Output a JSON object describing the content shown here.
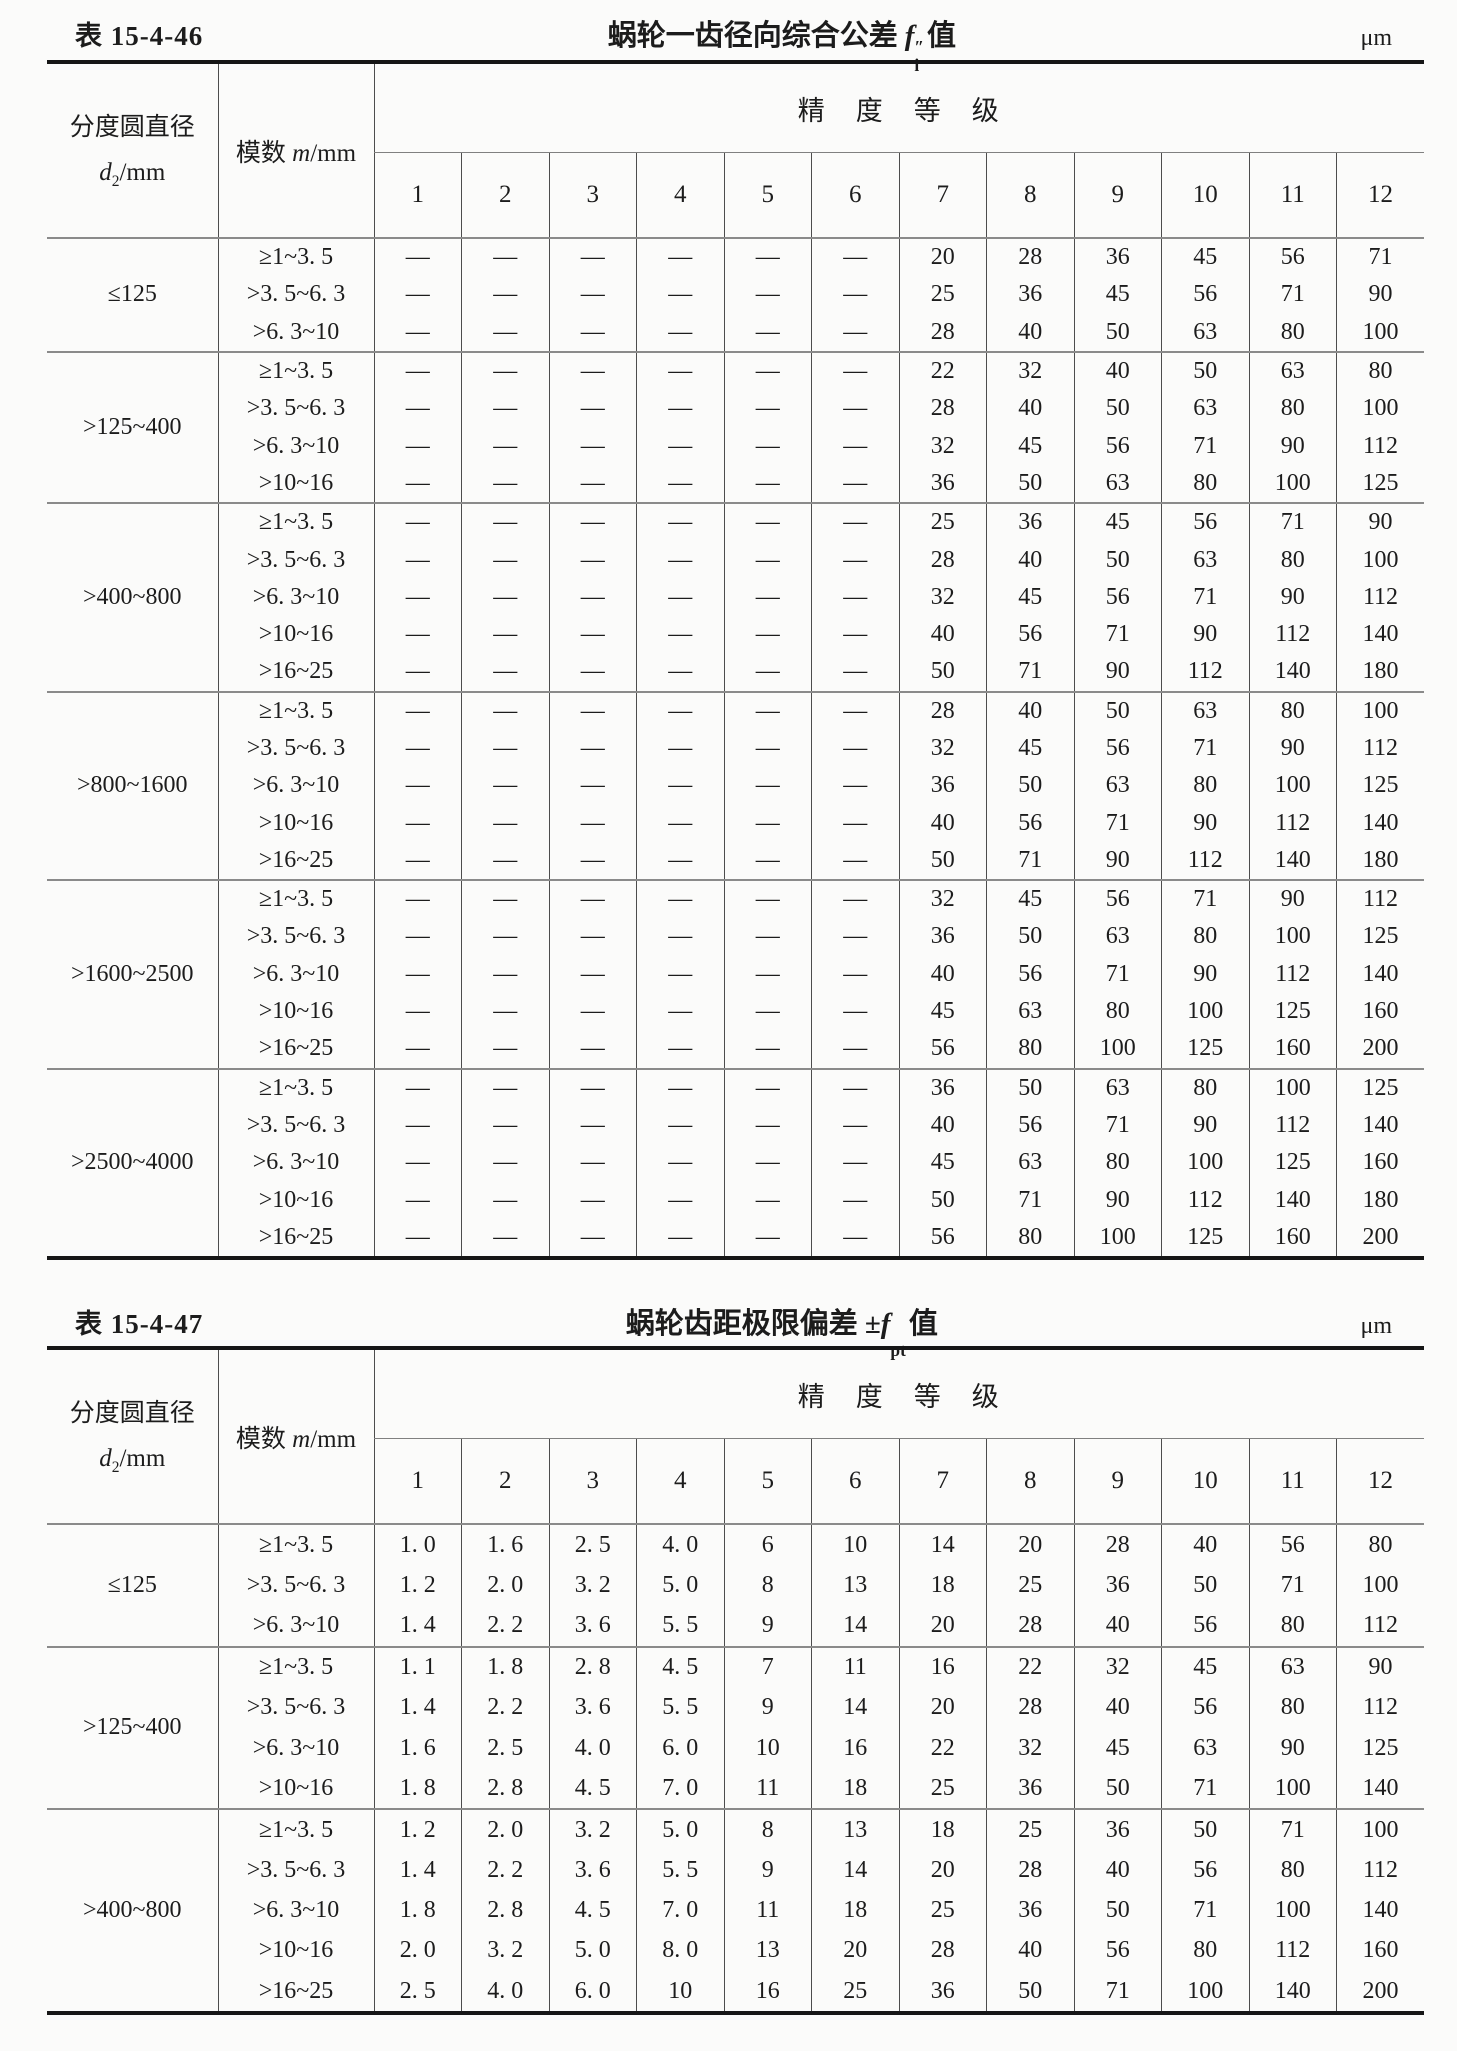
{
  "tables": [
    {
      "label": "表 15-4-46",
      "title": "蜗轮一齿径向综合公差",
      "symbol": {
        "prefix": "",
        "letter": "f",
        "sup": "″",
        "sub": "i"
      },
      "suffix": "值",
      "unit": "μm",
      "header": {
        "diameter_line1": "分度圆直径",
        "d_letter": "d",
        "d_sub": "2",
        "d_rest": "/mm",
        "module_prefix": "模数 ",
        "module_letter": "m",
        "module_rest": "/mm",
        "accuracy": "精　度　等　级",
        "grades": [
          "1",
          "2",
          "3",
          "4",
          "5",
          "6",
          "7",
          "8",
          "9",
          "10",
          "11",
          "12"
        ]
      },
      "groups": [
        {
          "diameter": "≤125",
          "rows": [
            {
              "module": "≥1~3. 5",
              "values": [
                "—",
                "—",
                "—",
                "—",
                "—",
                "—",
                "20",
                "28",
                "36",
                "45",
                "56",
                "71"
              ]
            },
            {
              "module": ">3. 5~6. 3",
              "values": [
                "—",
                "—",
                "—",
                "—",
                "—",
                "—",
                "25",
                "36",
                "45",
                "56",
                "71",
                "90"
              ]
            },
            {
              "module": ">6. 3~10",
              "values": [
                "—",
                "—",
                "—",
                "—",
                "—",
                "—",
                "28",
                "40",
                "50",
                "63",
                "80",
                "100"
              ]
            }
          ]
        },
        {
          "diameter": ">125~400",
          "rows": [
            {
              "module": "≥1~3. 5",
              "values": [
                "—",
                "—",
                "—",
                "—",
                "—",
                "—",
                "22",
                "32",
                "40",
                "50",
                "63",
                "80"
              ]
            },
            {
              "module": ">3. 5~6. 3",
              "values": [
                "—",
                "—",
                "—",
                "—",
                "—",
                "—",
                "28",
                "40",
                "50",
                "63",
                "80",
                "100"
              ]
            },
            {
              "module": ">6. 3~10",
              "values": [
                "—",
                "—",
                "—",
                "—",
                "—",
                "—",
                "32",
                "45",
                "56",
                "71",
                "90",
                "112"
              ]
            },
            {
              "module": ">10~16",
              "values": [
                "—",
                "—",
                "—",
                "—",
                "—",
                "—",
                "36",
                "50",
                "63",
                "80",
                "100",
                "125"
              ]
            }
          ]
        },
        {
          "diameter": ">400~800",
          "rows": [
            {
              "module": "≥1~3. 5",
              "values": [
                "—",
                "—",
                "—",
                "—",
                "—",
                "—",
                "25",
                "36",
                "45",
                "56",
                "71",
                "90"
              ]
            },
            {
              "module": ">3. 5~6. 3",
              "values": [
                "—",
                "—",
                "—",
                "—",
                "—",
                "—",
                "28",
                "40",
                "50",
                "63",
                "80",
                "100"
              ]
            },
            {
              "module": ">6. 3~10",
              "values": [
                "—",
                "—",
                "—",
                "—",
                "—",
                "—",
                "32",
                "45",
                "56",
                "71",
                "90",
                "112"
              ]
            },
            {
              "module": ">10~16",
              "values": [
                "—",
                "—",
                "—",
                "—",
                "—",
                "—",
                "40",
                "56",
                "71",
                "90",
                "112",
                "140"
              ]
            },
            {
              "module": ">16~25",
              "values": [
                "—",
                "—",
                "—",
                "—",
                "—",
                "—",
                "50",
                "71",
                "90",
                "112",
                "140",
                "180"
              ]
            }
          ]
        },
        {
          "diameter": ">800~1600",
          "rows": [
            {
              "module": "≥1~3. 5",
              "values": [
                "—",
                "—",
                "—",
                "—",
                "—",
                "—",
                "28",
                "40",
                "50",
                "63",
                "80",
                "100"
              ]
            },
            {
              "module": ">3. 5~6. 3",
              "values": [
                "—",
                "—",
                "—",
                "—",
                "—",
                "—",
                "32",
                "45",
                "56",
                "71",
                "90",
                "112"
              ]
            },
            {
              "module": ">6. 3~10",
              "values": [
                "—",
                "—",
                "—",
                "—",
                "—",
                "—",
                "36",
                "50",
                "63",
                "80",
                "100",
                "125"
              ]
            },
            {
              "module": ">10~16",
              "values": [
                "—",
                "—",
                "—",
                "—",
                "—",
                "—",
                "40",
                "56",
                "71",
                "90",
                "112",
                "140"
              ]
            },
            {
              "module": ">16~25",
              "values": [
                "—",
                "—",
                "—",
                "—",
                "—",
                "—",
                "50",
                "71",
                "90",
                "112",
                "140",
                "180"
              ]
            }
          ]
        },
        {
          "diameter": ">1600~2500",
          "rows": [
            {
              "module": "≥1~3. 5",
              "values": [
                "—",
                "—",
                "—",
                "—",
                "—",
                "—",
                "32",
                "45",
                "56",
                "71",
                "90",
                "112"
              ]
            },
            {
              "module": ">3. 5~6. 3",
              "values": [
                "—",
                "—",
                "—",
                "—",
                "—",
                "—",
                "36",
                "50",
                "63",
                "80",
                "100",
                "125"
              ]
            },
            {
              "module": ">6. 3~10",
              "values": [
                "—",
                "—",
                "—",
                "—",
                "—",
                "—",
                "40",
                "56",
                "71",
                "90",
                "112",
                "140"
              ]
            },
            {
              "module": ">10~16",
              "values": [
                "—",
                "—",
                "—",
                "—",
                "—",
                "—",
                "45",
                "63",
                "80",
                "100",
                "125",
                "160"
              ]
            },
            {
              "module": ">16~25",
              "values": [
                "—",
                "—",
                "—",
                "—",
                "—",
                "—",
                "56",
                "80",
                "100",
                "125",
                "160",
                "200"
              ]
            }
          ]
        },
        {
          "diameter": ">2500~4000",
          "rows": [
            {
              "module": "≥1~3. 5",
              "values": [
                "—",
                "—",
                "—",
                "—",
                "—",
                "—",
                "36",
                "50",
                "63",
                "80",
                "100",
                "125"
              ]
            },
            {
              "module": ">3. 5~6. 3",
              "values": [
                "—",
                "—",
                "—",
                "—",
                "—",
                "—",
                "40",
                "56",
                "71",
                "90",
                "112",
                "140"
              ]
            },
            {
              "module": ">6. 3~10",
              "values": [
                "—",
                "—",
                "—",
                "—",
                "—",
                "—",
                "45",
                "63",
                "80",
                "100",
                "125",
                "160"
              ]
            },
            {
              "module": ">10~16",
              "values": [
                "—",
                "—",
                "—",
                "—",
                "—",
                "—",
                "50",
                "71",
                "90",
                "112",
                "140",
                "180"
              ]
            },
            {
              "module": ">16~25",
              "values": [
                "—",
                "—",
                "—",
                "—",
                "—",
                "—",
                "56",
                "80",
                "100",
                "125",
                "160",
                "200"
              ]
            }
          ]
        }
      ]
    },
    {
      "label": "表 15-4-47",
      "title": "蜗轮齿距极限偏差",
      "symbol": {
        "prefix": "±",
        "letter": "f",
        "sup": "",
        "sub": "pt"
      },
      "suffix": "值",
      "unit": "μm",
      "header": {
        "diameter_line1": "分度圆直径",
        "d_letter": "d",
        "d_sub": "2",
        "d_rest": "/mm",
        "module_prefix": "模数 ",
        "module_letter": "m",
        "module_rest": "/mm",
        "accuracy": "精　度　等　级",
        "grades": [
          "1",
          "2",
          "3",
          "4",
          "5",
          "6",
          "7",
          "8",
          "9",
          "10",
          "11",
          "12"
        ]
      },
      "groups": [
        {
          "diameter": "≤125",
          "rows": [
            {
              "module": "≥1~3. 5",
              "values": [
                "1. 0",
                "1. 6",
                "2. 5",
                "4. 0",
                "6",
                "10",
                "14",
                "20",
                "28",
                "40",
                "56",
                "80"
              ]
            },
            {
              "module": ">3. 5~6. 3",
              "values": [
                "1. 2",
                "2. 0",
                "3. 2",
                "5. 0",
                "8",
                "13",
                "18",
                "25",
                "36",
                "50",
                "71",
                "100"
              ]
            },
            {
              "module": ">6. 3~10",
              "values": [
                "1. 4",
                "2. 2",
                "3. 6",
                "5. 5",
                "9",
                "14",
                "20",
                "28",
                "40",
                "56",
                "80",
                "112"
              ]
            }
          ]
        },
        {
          "diameter": ">125~400",
          "rows": [
            {
              "module": "≥1~3. 5",
              "values": [
                "1. 1",
                "1. 8",
                "2. 8",
                "4. 5",
                "7",
                "11",
                "16",
                "22",
                "32",
                "45",
                "63",
                "90"
              ]
            },
            {
              "module": ">3. 5~6. 3",
              "values": [
                "1. 4",
                "2. 2",
                "3. 6",
                "5. 5",
                "9",
                "14",
                "20",
                "28",
                "40",
                "56",
                "80",
                "112"
              ]
            },
            {
              "module": ">6. 3~10",
              "values": [
                "1. 6",
                "2. 5",
                "4. 0",
                "6. 0",
                "10",
                "16",
                "22",
                "32",
                "45",
                "63",
                "90",
                "125"
              ]
            },
            {
              "module": ">10~16",
              "values": [
                "1. 8",
                "2. 8",
                "4. 5",
                "7. 0",
                "11",
                "18",
                "25",
                "36",
                "50",
                "71",
                "100",
                "140"
              ]
            }
          ]
        },
        {
          "diameter": ">400~800",
          "rows": [
            {
              "module": "≥1~3. 5",
              "values": [
                "1. 2",
                "2. 0",
                "3. 2",
                "5. 0",
                "8",
                "13",
                "18",
                "25",
                "36",
                "50",
                "71",
                "100"
              ]
            },
            {
              "module": ">3. 5~6. 3",
              "values": [
                "1. 4",
                "2. 2",
                "3. 6",
                "5. 5",
                "9",
                "14",
                "20",
                "28",
                "40",
                "56",
                "80",
                "112"
              ]
            },
            {
              "module": ">6. 3~10",
              "values": [
                "1. 8",
                "2. 8",
                "4. 5",
                "7. 0",
                "11",
                "18",
                "25",
                "36",
                "50",
                "71",
                "100",
                "140"
              ]
            },
            {
              "module": ">10~16",
              "values": [
                "2. 0",
                "3. 2",
                "5. 0",
                "8. 0",
                "13",
                "20",
                "28",
                "40",
                "56",
                "80",
                "112",
                "160"
              ]
            },
            {
              "module": ">16~25",
              "values": [
                "2. 5",
                "4. 0",
                "6. 0",
                "10",
                "16",
                "25",
                "36",
                "50",
                "71",
                "100",
                "140",
                "200"
              ]
            }
          ]
        }
      ]
    }
  ]
}
